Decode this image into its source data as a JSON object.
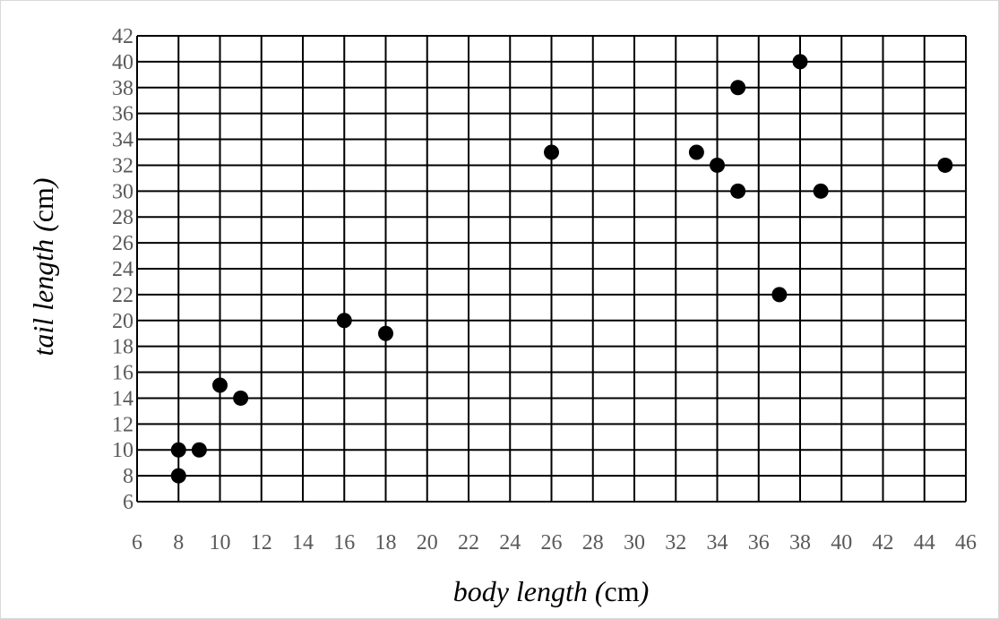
{
  "chart_data": {
    "type": "scatter",
    "title": "",
    "xlabel": {
      "italic": "body length (",
      "upright": "cm",
      "close": ")"
    },
    "ylabel": {
      "italic": "tail length (",
      "upright": "cm",
      "close": ")"
    },
    "xlim": [
      6,
      46
    ],
    "ylim": [
      6,
      42
    ],
    "xticks": [
      6,
      8,
      10,
      12,
      14,
      16,
      18,
      20,
      22,
      24,
      26,
      28,
      30,
      32,
      34,
      36,
      38,
      40,
      42,
      44,
      46
    ],
    "yticks": [
      6,
      8,
      10,
      12,
      14,
      16,
      18,
      20,
      22,
      24,
      26,
      28,
      30,
      32,
      34,
      36,
      38,
      40,
      42
    ],
    "grid": true,
    "legend": false,
    "points": [
      {
        "x": 8,
        "y": 8
      },
      {
        "x": 8,
        "y": 10
      },
      {
        "x": 9,
        "y": 10
      },
      {
        "x": 10,
        "y": 15
      },
      {
        "x": 11,
        "y": 14
      },
      {
        "x": 16,
        "y": 20
      },
      {
        "x": 18,
        "y": 19
      },
      {
        "x": 26,
        "y": 33
      },
      {
        "x": 33,
        "y": 33
      },
      {
        "x": 34,
        "y": 32
      },
      {
        "x": 35,
        "y": 38
      },
      {
        "x": 35,
        "y": 30
      },
      {
        "x": 37,
        "y": 22
      },
      {
        "x": 38,
        "y": 40
      },
      {
        "x": 39,
        "y": 30
      },
      {
        "x": 45,
        "y": 32
      }
    ],
    "colors": {
      "marker": "#000000",
      "grid": "#000000",
      "tick_text": "#595959",
      "axis_title": "#000000"
    }
  }
}
